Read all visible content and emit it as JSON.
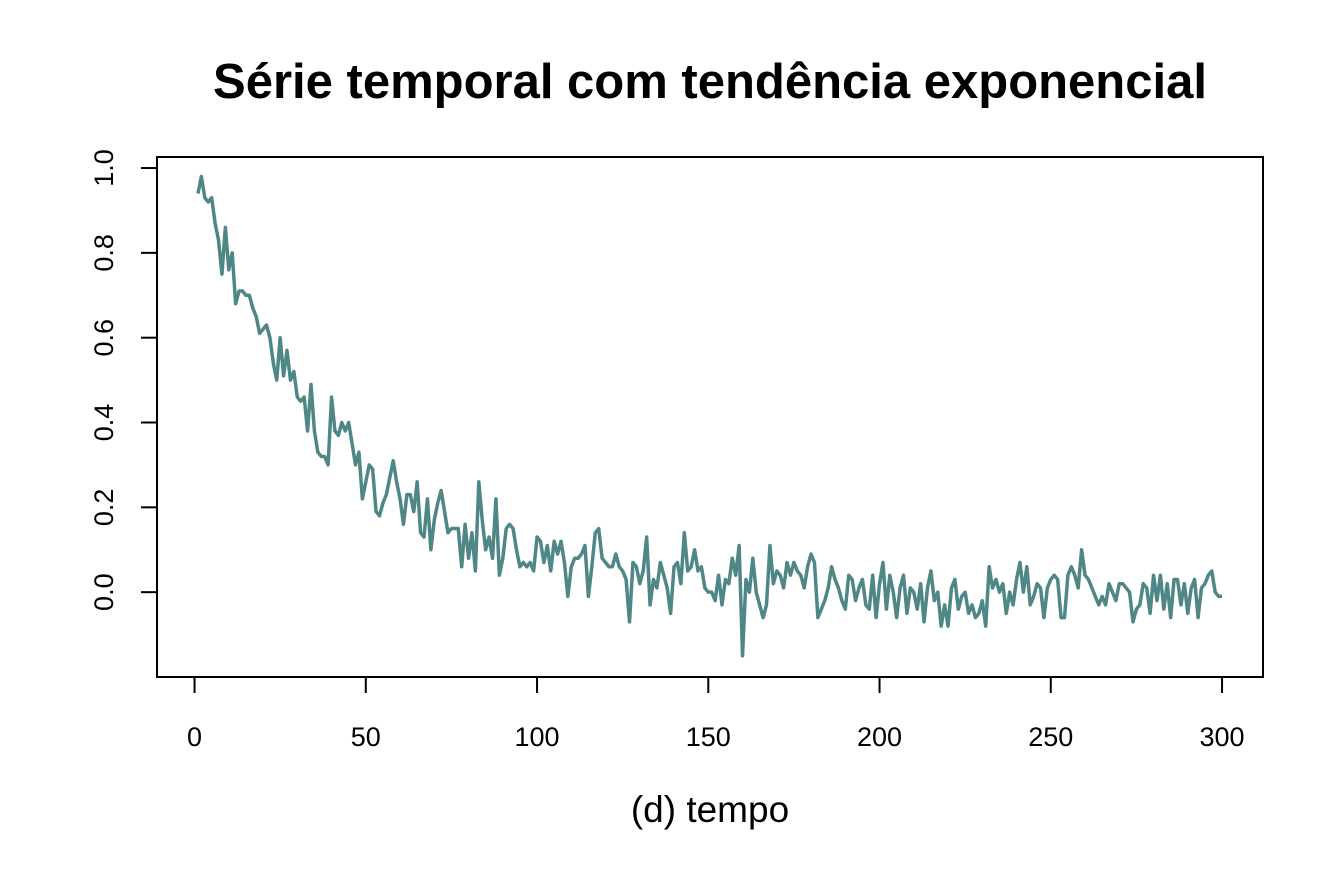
{
  "chart_data": {
    "type": "line",
    "title": "Série temporal com tendência exponencial",
    "x_label": "(d) tempo",
    "color": "#4f8787",
    "xlim": [
      -10.96,
      311.96
    ],
    "ylim": [
      -0.2,
      1.026
    ],
    "xticks": [
      0,
      50,
      100,
      150,
      200,
      250,
      300
    ],
    "yticks": [
      {
        "value": 0,
        "label": "0.0"
      },
      0.2,
      0.4,
      0.6,
      0.8,
      {
        "value": 1,
        "label": "1.0"
      }
    ],
    "x": [
      1,
      2,
      3,
      4,
      5,
      6,
      7,
      8,
      9,
      10,
      11,
      12,
      13,
      14,
      15,
      16,
      17,
      18,
      19,
      20,
      21,
      22,
      23,
      24,
      25,
      26,
      27,
      28,
      29,
      30,
      31,
      32,
      33,
      34,
      35,
      36,
      37,
      38,
      39,
      40,
      41,
      42,
      43,
      44,
      45,
      46,
      47,
      48,
      49,
      50,
      51,
      52,
      53,
      54,
      55,
      56,
      57,
      58,
      59,
      60,
      61,
      62,
      63,
      64,
      65,
      66,
      67,
      68,
      69,
      70,
      71,
      72,
      73,
      74,
      75,
      76,
      77,
      78,
      79,
      80,
      81,
      82,
      83,
      84,
      85,
      86,
      87,
      88,
      89,
      90,
      91,
      92,
      93,
      94,
      95,
      96,
      97,
      98,
      99,
      100,
      101,
      102,
      103,
      104,
      105,
      106,
      107,
      108,
      109,
      110,
      111,
      112,
      113,
      114,
      115,
      116,
      117,
      118,
      119,
      120,
      121,
      122,
      123,
      124,
      125,
      126,
      127,
      128,
      129,
      130,
      131,
      132,
      133,
      134,
      135,
      136,
      137,
      138,
      139,
      140,
      141,
      142,
      143,
      144,
      145,
      146,
      147,
      148,
      149,
      150,
      151,
      152,
      153,
      154,
      155,
      156,
      157,
      158,
      159,
      160,
      161,
      162,
      163,
      164,
      165,
      166,
      167,
      168,
      169,
      170,
      171,
      172,
      173,
      174,
      175,
      176,
      177,
      178,
      179,
      180,
      181,
      182,
      183,
      184,
      185,
      186,
      187,
      188,
      189,
      190,
      191,
      192,
      193,
      194,
      195,
      196,
      197,
      198,
      199,
      200,
      201,
      202,
      203,
      204,
      205,
      206,
      207,
      208,
      209,
      210,
      211,
      212,
      213,
      214,
      215,
      216,
      217,
      218,
      219,
      220,
      221,
      222,
      223,
      224,
      225,
      226,
      227,
      228,
      229,
      230,
      231,
      232,
      233,
      234,
      235,
      236,
      237,
      238,
      239,
      240,
      241,
      242,
      243,
      244,
      245,
      246,
      247,
      248,
      249,
      250,
      251,
      252,
      253,
      254,
      255,
      256,
      257,
      258,
      259,
      260,
      261,
      262,
      263,
      264,
      265,
      266,
      267,
      268,
      269,
      270,
      271,
      272,
      273,
      274,
      275,
      276,
      277,
      278,
      279,
      280,
      281,
      282,
      283,
      284,
      285,
      286,
      287,
      288,
      289,
      290,
      291,
      292,
      293,
      294,
      295,
      296,
      297,
      298,
      299,
      300
    ],
    "values": [
      0.94,
      0.98,
      0.93,
      0.92,
      0.93,
      0.87,
      0.83,
      0.75,
      0.86,
      0.76,
      0.8,
      0.68,
      0.71,
      0.71,
      0.7,
      0.7,
      0.67,
      0.65,
      0.61,
      0.62,
      0.63,
      0.6,
      0.54,
      0.5,
      0.6,
      0.51,
      0.57,
      0.5,
      0.52,
      0.46,
      0.45,
      0.46,
      0.38,
      0.49,
      0.38,
      0.33,
      0.32,
      0.32,
      0.3,
      0.46,
      0.38,
      0.37,
      0.4,
      0.38,
      0.4,
      0.35,
      0.3,
      0.33,
      0.22,
      0.26,
      0.3,
      0.29,
      0.19,
      0.18,
      0.21,
      0.23,
      0.27,
      0.31,
      0.26,
      0.22,
      0.16,
      0.23,
      0.23,
      0.19,
      0.26,
      0.14,
      0.13,
      0.22,
      0.1,
      0.17,
      0.21,
      0.24,
      0.19,
      0.14,
      0.15,
      0.15,
      0.15,
      0.06,
      0.16,
      0.08,
      0.14,
      0.05,
      0.26,
      0.17,
      0.1,
      0.13,
      0.08,
      0.22,
      0.04,
      0.08,
      0.15,
      0.16,
      0.15,
      0.1,
      0.06,
      0.07,
      0.06,
      0.07,
      0.05,
      0.13,
      0.12,
      0.07,
      0.11,
      0.05,
      0.12,
      0.09,
      0.12,
      0.07,
      -0.01,
      0.06,
      0.08,
      0.08,
      0.09,
      0.11,
      -0.01,
      0.06,
      0.14,
      0.15,
      0.08,
      0.07,
      0.06,
      0.06,
      0.09,
      0.06,
      0.05,
      0.03,
      -0.07,
      0.07,
      0.06,
      0.02,
      0.05,
      0.13,
      -0.03,
      0.03,
      0.01,
      0.07,
      0.04,
      0.01,
      -0.05,
      0.06,
      0.07,
      0.02,
      0.14,
      0.05,
      0.06,
      0.1,
      0.05,
      0.06,
      0.01,
      0.0,
      0.0,
      -0.02,
      0.04,
      -0.03,
      0.03,
      0.02,
      0.08,
      0.04,
      0.11,
      -0.15,
      0.03,
      0.0,
      0.08,
      0.0,
      -0.03,
      -0.06,
      -0.03,
      0.11,
      0.02,
      0.05,
      0.04,
      0.01,
      0.07,
      0.04,
      0.07,
      0.05,
      0.04,
      0.01,
      0.06,
      0.09,
      0.07,
      -0.06,
      -0.04,
      -0.02,
      0.01,
      0.06,
      0.03,
      0.01,
      -0.02,
      -0.04,
      0.04,
      0.03,
      -0.02,
      0.01,
      0.03,
      -0.03,
      -0.04,
      0.04,
      -0.06,
      0.02,
      0.07,
      -0.04,
      0.04,
      0.0,
      -0.06,
      0.01,
      0.04,
      -0.05,
      0.01,
      0.0,
      -0.04,
      0.02,
      -0.07,
      0.01,
      0.05,
      -0.02,
      0.0,
      -0.08,
      -0.03,
      -0.08,
      0.01,
      0.03,
      -0.04,
      -0.01,
      0.0,
      -0.05,
      -0.03,
      -0.06,
      -0.05,
      -0.02,
      -0.08,
      0.06,
      0.01,
      0.03,
      0.0,
      0.02,
      -0.05,
      0.0,
      -0.03,
      0.03,
      0.07,
      0.0,
      0.06,
      -0.03,
      -0.01,
      0.02,
      0.01,
      -0.06,
      0.01,
      0.03,
      0.04,
      0.03,
      -0.06,
      -0.06,
      0.04,
      0.06,
      0.04,
      0.01,
      0.1,
      0.04,
      0.03,
      0.01,
      -0.01,
      -0.03,
      -0.01,
      -0.03,
      0.02,
      0.0,
      -0.02,
      0.02,
      0.02,
      0.01,
      0.0,
      -0.07,
      -0.04,
      -0.03,
      0.02,
      0.01,
      -0.05,
      0.04,
      -0.02,
      0.04,
      -0.04,
      0.02,
      -0.06,
      0.03,
      0.03,
      -0.03,
      0.02,
      -0.05,
      0.01,
      0.03,
      -0.06,
      0.01,
      0.02,
      0.04,
      0.05,
      0.0,
      -0.01,
      -0.01
    ]
  }
}
